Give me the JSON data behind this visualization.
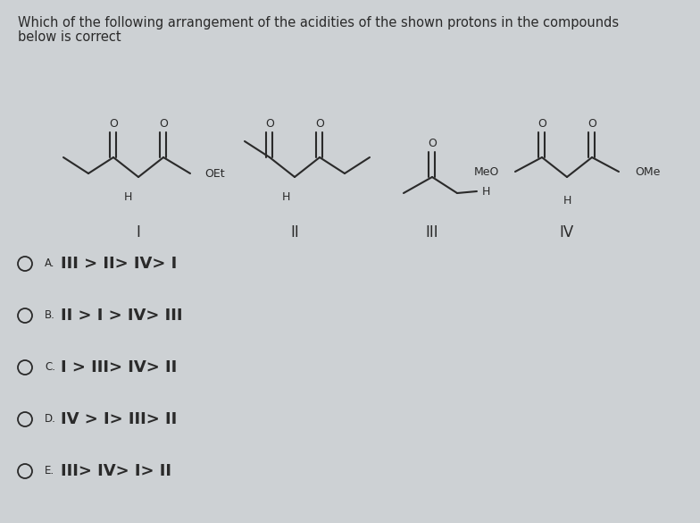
{
  "title_line1": "Which of the following arrangement of the acidities of the shown protons in the compounds",
  "title_line2": "below is correct",
  "bg_color": "#cdd1d4",
  "text_color": "#2a2a2a",
  "options": [
    {
      "label": "A.",
      "text": "III > II> IV> I"
    },
    {
      "label": "B.",
      "text": "II > I > IV> III"
    },
    {
      "label": "C.",
      "text": "I > III> IV> II"
    },
    {
      "label": "D.",
      "text": "IV > I> III> II"
    },
    {
      "label": "E.",
      "text": "III> IV> I> II"
    }
  ],
  "compound_labels": [
    "I",
    "II",
    "III",
    "IV"
  ],
  "title_fontsize": 10.5,
  "option_label_fontsize": 8.5,
  "option_text_fontsize": 13,
  "struct_fontsize": 9,
  "compound_label_fontsize": 12
}
